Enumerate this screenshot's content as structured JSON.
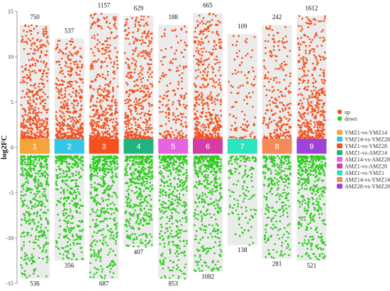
{
  "chart_data": {
    "type": "scatter",
    "title": "",
    "xlabel": "",
    "ylabel": "log2FC",
    "ylim": [
      -15,
      15
    ],
    "yticks": [
      -15,
      -10,
      -5,
      0,
      5,
      10,
      15
    ],
    "grid": false,
    "legend_position": "right",
    "colors": {
      "up": "#f4511e",
      "down": "#2ecc1f",
      "panel_bg": "#ebebeb"
    },
    "direction_legend": [
      {
        "name": "up",
        "color": "#f4511e"
      },
      {
        "name": "down",
        "color": "#2ecc1f"
      }
    ],
    "groups": [
      {
        "id": "1",
        "name": "YMZ1-vs-YMZ14",
        "color": "#f5a43a",
        "up": 750,
        "down": 536,
        "up_max": 13.5,
        "down_min": -14.5
      },
      {
        "id": "2",
        "name": "YMZ14-vs-YMZ28",
        "color": "#35c6e6",
        "up": 537,
        "down": 356,
        "up_max": 12.0,
        "down_min": -12.5
      },
      {
        "id": "3",
        "name": "YMZ1-vs-YMZ28",
        "color": "#f4511e",
        "up": 1157,
        "down": 687,
        "up_max": 14.8,
        "down_min": -14.5
      },
      {
        "id": "4",
        "name": "AMZ1-vs-AMZ14",
        "color": "#20b27f",
        "up": 629,
        "down": 407,
        "up_max": 14.5,
        "down_min": -11.0
      },
      {
        "id": "5",
        "name": "AMZ14-vs-AMZ28",
        "color": "#e764e0",
        "up": 188,
        "down": 853,
        "up_max": 13.5,
        "down_min": -14.5
      },
      {
        "id": "6",
        "name": "AMZ1-vs-AMZ28",
        "color": "#d63ca6",
        "up": 665,
        "down": 1082,
        "up_max": 14.8,
        "down_min": -13.7
      },
      {
        "id": "7",
        "name": "AMZ1-vs-YMZ1",
        "color": "#2ee3bf",
        "up": 109,
        "down": 138,
        "up_max": 12.5,
        "down_min": -10.8
      },
      {
        "id": "8",
        "name": "AMZ14-vs-YMZ14",
        "color": "#f58a57",
        "up": 242,
        "down": 281,
        "up_max": 13.5,
        "down_min": -12.3
      },
      {
        "id": "9",
        "name": "AMZ28-vs-YMZ28",
        "color": "#9e43d9",
        "up": 1612,
        "down": 521,
        "up_max": 14.5,
        "down_min": -12.5
      }
    ]
  }
}
